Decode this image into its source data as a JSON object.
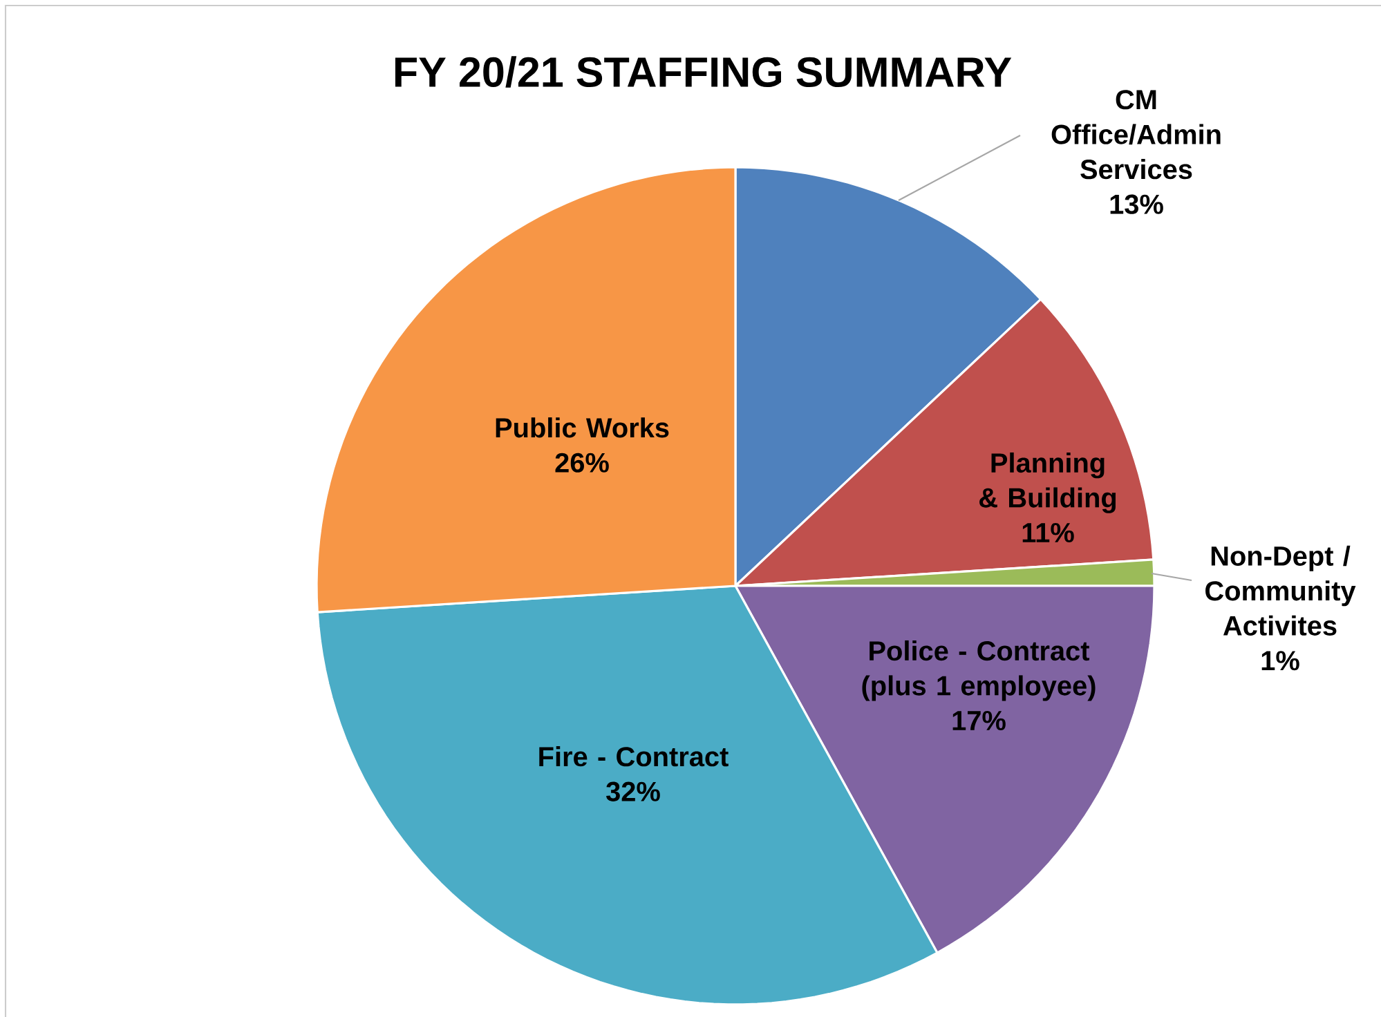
{
  "chart_data": {
    "type": "pie",
    "title": "FY 20/21 STAFFING SUMMARY",
    "categories": [
      "CM Office/Admin Services",
      "Planning & Building",
      "Non-Dept / Community Activites",
      "Police - Contract (plus 1 employee)",
      "Fire - Contract",
      "Public Works"
    ],
    "values": [
      13,
      11,
      1,
      17,
      32,
      26
    ],
    "value_labels": [
      "13%",
      "11%",
      "1%",
      "17%",
      "32%",
      "26%"
    ],
    "colors": [
      "#4f81bd",
      "#c0504d",
      "#9bbb59",
      "#8064a2",
      "#4bacc6",
      "#f79646"
    ]
  }
}
